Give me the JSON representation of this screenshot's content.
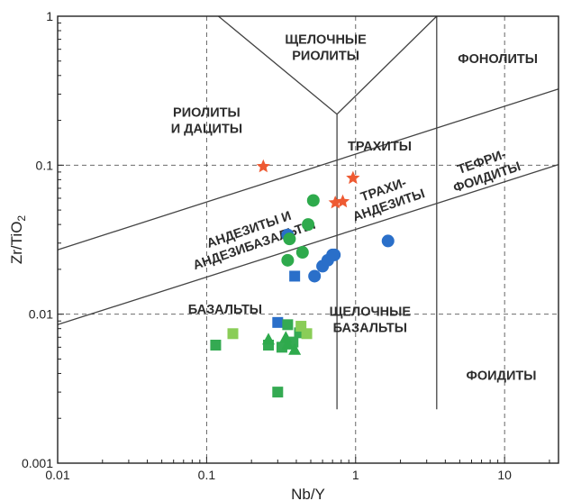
{
  "chart_data": {
    "type": "scatter",
    "title": "",
    "xlabel": "Nb/Y",
    "ylabel_main": "Zr/TiO",
    "ylabel_sub": "2",
    "x_scale": "log",
    "y_scale": "log",
    "xlim": [
      0.01,
      23
    ],
    "ylim": [
      0.001,
      1
    ],
    "grid": true,
    "x_ticks": [
      {
        "value": 0.01,
        "label": "0.01"
      },
      {
        "value": 0.1,
        "label": "0.1"
      },
      {
        "value": 1,
        "label": "1"
      },
      {
        "value": 10,
        "label": "10"
      }
    ],
    "y_ticks": [
      {
        "value": 0.001,
        "label": "0.001"
      },
      {
        "value": 0.01,
        "label": "0.01"
      },
      {
        "value": 0.1,
        "label": "0.1"
      },
      {
        "value": 1,
        "label": "1"
      }
    ],
    "fields": [
      {
        "lines": [
          "ЩЕЛОЧНЫЕ",
          "РИОЛИТЫ"
        ],
        "x": 0.63,
        "y": 0.62,
        "rotate": 0
      },
      {
        "lines": [
          "ФОНОЛИТЫ"
        ],
        "x": 9.0,
        "y": 0.52,
        "rotate": 0
      },
      {
        "lines": [
          "РИОЛИТЫ",
          "И ДАЦИТЫ"
        ],
        "x": 0.1,
        "y": 0.2,
        "rotate": 0
      },
      {
        "lines": [
          "ТРАХИТЫ"
        ],
        "x": 1.45,
        "y": 0.135,
        "rotate": 0
      },
      {
        "lines": [
          "ТЕФРИ-",
          "ФОИДИТЫ"
        ],
        "x": 7.3,
        "y": 0.094,
        "rotate": -19
      },
      {
        "lines": [
          "ТРАХИ-",
          "АНДЕЗИТЫ"
        ],
        "x": 1.6,
        "y": 0.061,
        "rotate": -19
      },
      {
        "lines": [
          "АНДЕЗИТЫ И",
          "АНДЕЗИБАЗАЛЬТЫ"
        ],
        "x": 0.2,
        "y": 0.033,
        "rotate": -19
      },
      {
        "lines": [
          "БАЗАЛЬТЫ"
        ],
        "x": 0.133,
        "y": 0.0108,
        "rotate": 0
      },
      {
        "lines": [
          "ЩЕЛОЧНЫЕ",
          "БАЗАЛЬТЫ"
        ],
        "x": 1.25,
        "y": 0.0092,
        "rotate": 0
      },
      {
        "lines": [
          "ФОИДИТЫ"
        ],
        "x": 9.5,
        "y": 0.0039,
        "rotate": 0
      }
    ],
    "boundaries": [
      {
        "points": [
          [
            0.01,
            0.027
          ],
          [
            23,
            0.325
          ]
        ]
      },
      {
        "points": [
          [
            0.01,
            0.0085
          ],
          [
            23,
            0.101
          ]
        ]
      },
      {
        "points": [
          [
            0.12,
            1.0
          ],
          [
            0.75,
            0.22
          ],
          [
            3.5,
            1.0
          ]
        ]
      },
      {
        "points": [
          [
            0.75,
            0.22
          ],
          [
            0.75,
            0.0023
          ]
        ]
      },
      {
        "points": [
          [
            3.5,
            1.0
          ],
          [
            3.5,
            0.0023
          ]
        ]
      }
    ],
    "series": [
      {
        "marker": "star",
        "color": "#ee5a32",
        "points": [
          [
            0.24,
            0.098
          ],
          [
            0.96,
            0.082
          ],
          [
            0.73,
            0.056
          ],
          [
            0.82,
            0.057
          ]
        ]
      },
      {
        "marker": "circle",
        "color": "#2a6fc9",
        "points": [
          [
            0.35,
            0.034
          ],
          [
            0.6,
            0.021
          ],
          [
            0.65,
            0.023
          ],
          [
            0.7,
            0.025
          ],
          [
            0.72,
            0.025
          ],
          [
            0.53,
            0.018
          ],
          [
            1.65,
            0.031
          ]
        ]
      },
      {
        "marker": "circle",
        "color": "#2eaa4c",
        "points": [
          [
            0.52,
            0.058
          ],
          [
            0.48,
            0.04
          ],
          [
            0.44,
            0.026
          ],
          [
            0.36,
            0.032
          ],
          [
            0.35,
            0.023
          ]
        ]
      },
      {
        "marker": "square",
        "color": "#2a6fc9",
        "points": [
          [
            0.39,
            0.018
          ],
          [
            0.3,
            0.0088
          ]
        ]
      },
      {
        "marker": "square",
        "color": "#34aa52",
        "points": [
          [
            0.115,
            0.0062
          ],
          [
            0.26,
            0.0062
          ],
          [
            0.3,
            0.003
          ],
          [
            0.35,
            0.0085
          ],
          [
            0.38,
            0.0065
          ],
          [
            0.42,
            0.0075
          ],
          [
            0.32,
            0.006
          ]
        ]
      },
      {
        "marker": "square",
        "color": "#8acd57",
        "points": [
          [
            0.15,
            0.0074
          ],
          [
            0.43,
            0.0083
          ],
          [
            0.47,
            0.0074
          ]
        ]
      },
      {
        "marker": "triangle",
        "color": "#2eaa4c",
        "points": [
          [
            0.26,
            0.0068
          ],
          [
            0.34,
            0.007
          ],
          [
            0.39,
            0.0058
          ],
          [
            0.35,
            0.0063
          ]
        ]
      }
    ]
  }
}
